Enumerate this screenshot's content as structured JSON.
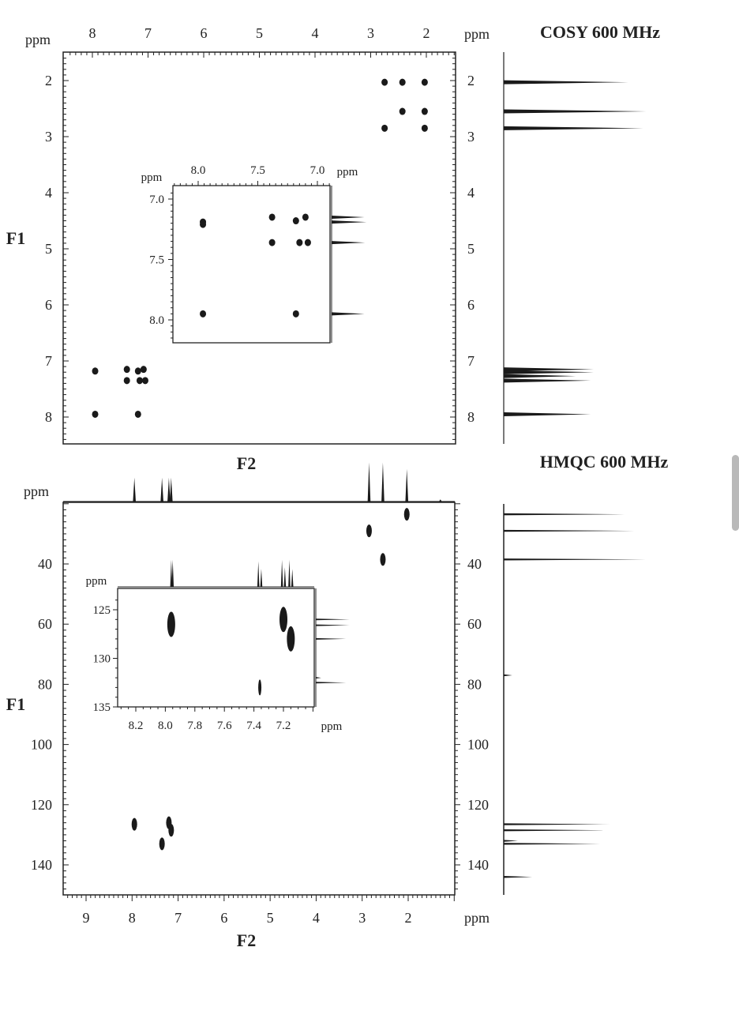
{
  "chart_data": [
    {
      "type": "scatter",
      "title": "COSY 600 MHz",
      "unit_label": "ppm",
      "xlabel": "F2",
      "ylabel": "F1",
      "xlim": [
        8.5,
        1.5
      ],
      "ylim": [
        1.5,
        8.5
      ],
      "x_ticks": [
        "8",
        "7",
        "6",
        "5",
        "4",
        "3",
        "2"
      ],
      "y_ticks": [
        "2",
        "3",
        "4",
        "5",
        "6",
        "7",
        "8"
      ],
      "peaks": [
        {
          "x": 2.75,
          "y": 2.03
        },
        {
          "x": 2.43,
          "y": 2.03
        },
        {
          "x": 2.03,
          "y": 2.03
        },
        {
          "x": 2.43,
          "y": 2.55
        },
        {
          "x": 2.03,
          "y": 2.55
        },
        {
          "x": 2.75,
          "y": 2.85
        },
        {
          "x": 2.03,
          "y": 2.85
        },
        {
          "x": 7.95,
          "y": 7.18
        },
        {
          "x": 7.38,
          "y": 7.15
        },
        {
          "x": 7.18,
          "y": 7.18
        },
        {
          "x": 7.08,
          "y": 7.15
        },
        {
          "x": 7.38,
          "y": 7.35
        },
        {
          "x": 7.15,
          "y": 7.35
        },
        {
          "x": 7.05,
          "y": 7.35
        },
        {
          "x": 7.95,
          "y": 7.95
        },
        {
          "x": 7.18,
          "y": 7.95
        }
      ],
      "projection_f1": [
        {
          "ppm": 2.03,
          "intensity": 0.83
        },
        {
          "ppm": 2.55,
          "intensity": 0.95
        },
        {
          "ppm": 2.85,
          "intensity": 0.93
        },
        {
          "ppm": 7.15,
          "intensity": 0.6
        },
        {
          "ppm": 7.2,
          "intensity": 0.6
        },
        {
          "ppm": 7.27,
          "intensity": 0.48
        },
        {
          "ppm": 7.35,
          "intensity": 0.58
        },
        {
          "ppm": 7.95,
          "intensity": 0.58
        }
      ],
      "inset": {
        "unit_label": "ppm",
        "xlim": [
          8.2,
          6.9
        ],
        "ylim": [
          6.95,
          8.2
        ],
        "x_ticks": [
          "8.0",
          "7.5",
          "7.0"
        ],
        "y_ticks": [
          "7.0",
          "7.5",
          "8.0"
        ],
        "peaks": [
          {
            "x": 7.96,
            "y": 7.19
          },
          {
            "x": 7.96,
            "y": 7.21
          },
          {
            "x": 7.38,
            "y": 7.15
          },
          {
            "x": 7.18,
            "y": 7.18
          },
          {
            "x": 7.1,
            "y": 7.15
          },
          {
            "x": 7.38,
            "y": 7.36
          },
          {
            "x": 7.15,
            "y": 7.36
          },
          {
            "x": 7.08,
            "y": 7.36
          },
          {
            "x": 7.96,
            "y": 7.95
          },
          {
            "x": 7.18,
            "y": 7.95
          }
        ]
      }
    },
    {
      "type": "scatter",
      "title": "HMQC 600 MHz",
      "unit_label": "ppm",
      "xlabel": "F2",
      "ylabel": "F1",
      "xlim": [
        9.5,
        1.0
      ],
      "ylim": [
        20,
        150
      ],
      "x_ticks": [
        "9",
        "8",
        "7",
        "6",
        "5",
        "4",
        "3",
        "2"
      ],
      "y_ticks": [
        "40",
        "60",
        "80",
        "100",
        "120",
        "140"
      ],
      "peaks": [
        {
          "x": 2.03,
          "y": 23.5
        },
        {
          "x": 2.85,
          "y": 29.0
        },
        {
          "x": 2.55,
          "y": 38.5
        },
        {
          "x": 7.95,
          "y": 126.5
        },
        {
          "x": 7.2,
          "y": 126.0
        },
        {
          "x": 7.15,
          "y": 128.5
        },
        {
          "x": 7.35,
          "y": 133.0
        }
      ],
      "projection_f2": [
        {
          "ppm": 7.95,
          "intensity": 0.55
        },
        {
          "ppm": 7.35,
          "intensity": 0.55
        },
        {
          "ppm": 7.2,
          "intensity": 0.55
        },
        {
          "ppm": 7.15,
          "intensity": 0.55
        },
        {
          "ppm": 2.85,
          "intensity": 0.9
        },
        {
          "ppm": 2.55,
          "intensity": 0.9
        },
        {
          "ppm": 2.03,
          "intensity": 0.75
        },
        {
          "ppm": 1.3,
          "intensity": 0.05
        }
      ],
      "projection_f1": [
        {
          "ppm": 23.5,
          "intensity": 0.85
        },
        {
          "ppm": 29.0,
          "intensity": 0.92
        },
        {
          "ppm": 38.5,
          "intensity": 1.0
        },
        {
          "ppm": 77.0,
          "intensity": 0.06
        },
        {
          "ppm": 126.5,
          "intensity": 0.75
        },
        {
          "ppm": 128.5,
          "intensity": 0.7
        },
        {
          "ppm": 132.0,
          "intensity": 0.1
        },
        {
          "ppm": 133.0,
          "intensity": 0.68
        },
        {
          "ppm": 144.0,
          "intensity": 0.2
        }
      ],
      "inset": {
        "unit_label": "ppm",
        "xlim": [
          8.3,
          7.0
        ],
        "ylim": [
          124,
          135
        ],
        "x_ticks": [
          "8.2",
          "8.0",
          "7.8",
          "7.6",
          "7.4",
          "7.2"
        ],
        "y_ticks": [
          "125",
          "130",
          "135"
        ],
        "peaks": [
          {
            "x": 7.96,
            "y": 126.5
          },
          {
            "x": 7.2,
            "y": 126.0
          },
          {
            "x": 7.15,
            "y": 128.0
          },
          {
            "x": 7.36,
            "y": 133.0
          }
        ],
        "projection_f2": [
          {
            "ppm": 7.96,
            "intensity": 0.9
          },
          {
            "ppm": 7.95,
            "intensity": 0.9
          },
          {
            "ppm": 7.37,
            "intensity": 0.85
          },
          {
            "ppm": 7.35,
            "intensity": 0.6
          },
          {
            "ppm": 7.21,
            "intensity": 0.9
          },
          {
            "ppm": 7.19,
            "intensity": 0.65
          },
          {
            "ppm": 7.16,
            "intensity": 0.9
          },
          {
            "ppm": 7.14,
            "intensity": 0.6
          }
        ],
        "projection_f1": [
          {
            "ppm": 126.0,
            "intensity": 0.95
          },
          {
            "ppm": 126.6,
            "intensity": 0.95
          },
          {
            "ppm": 128.0,
            "intensity": 0.85
          },
          {
            "ppm": 132.0,
            "intensity": 0.15
          },
          {
            "ppm": 132.5,
            "intensity": 0.85
          }
        ]
      }
    }
  ]
}
